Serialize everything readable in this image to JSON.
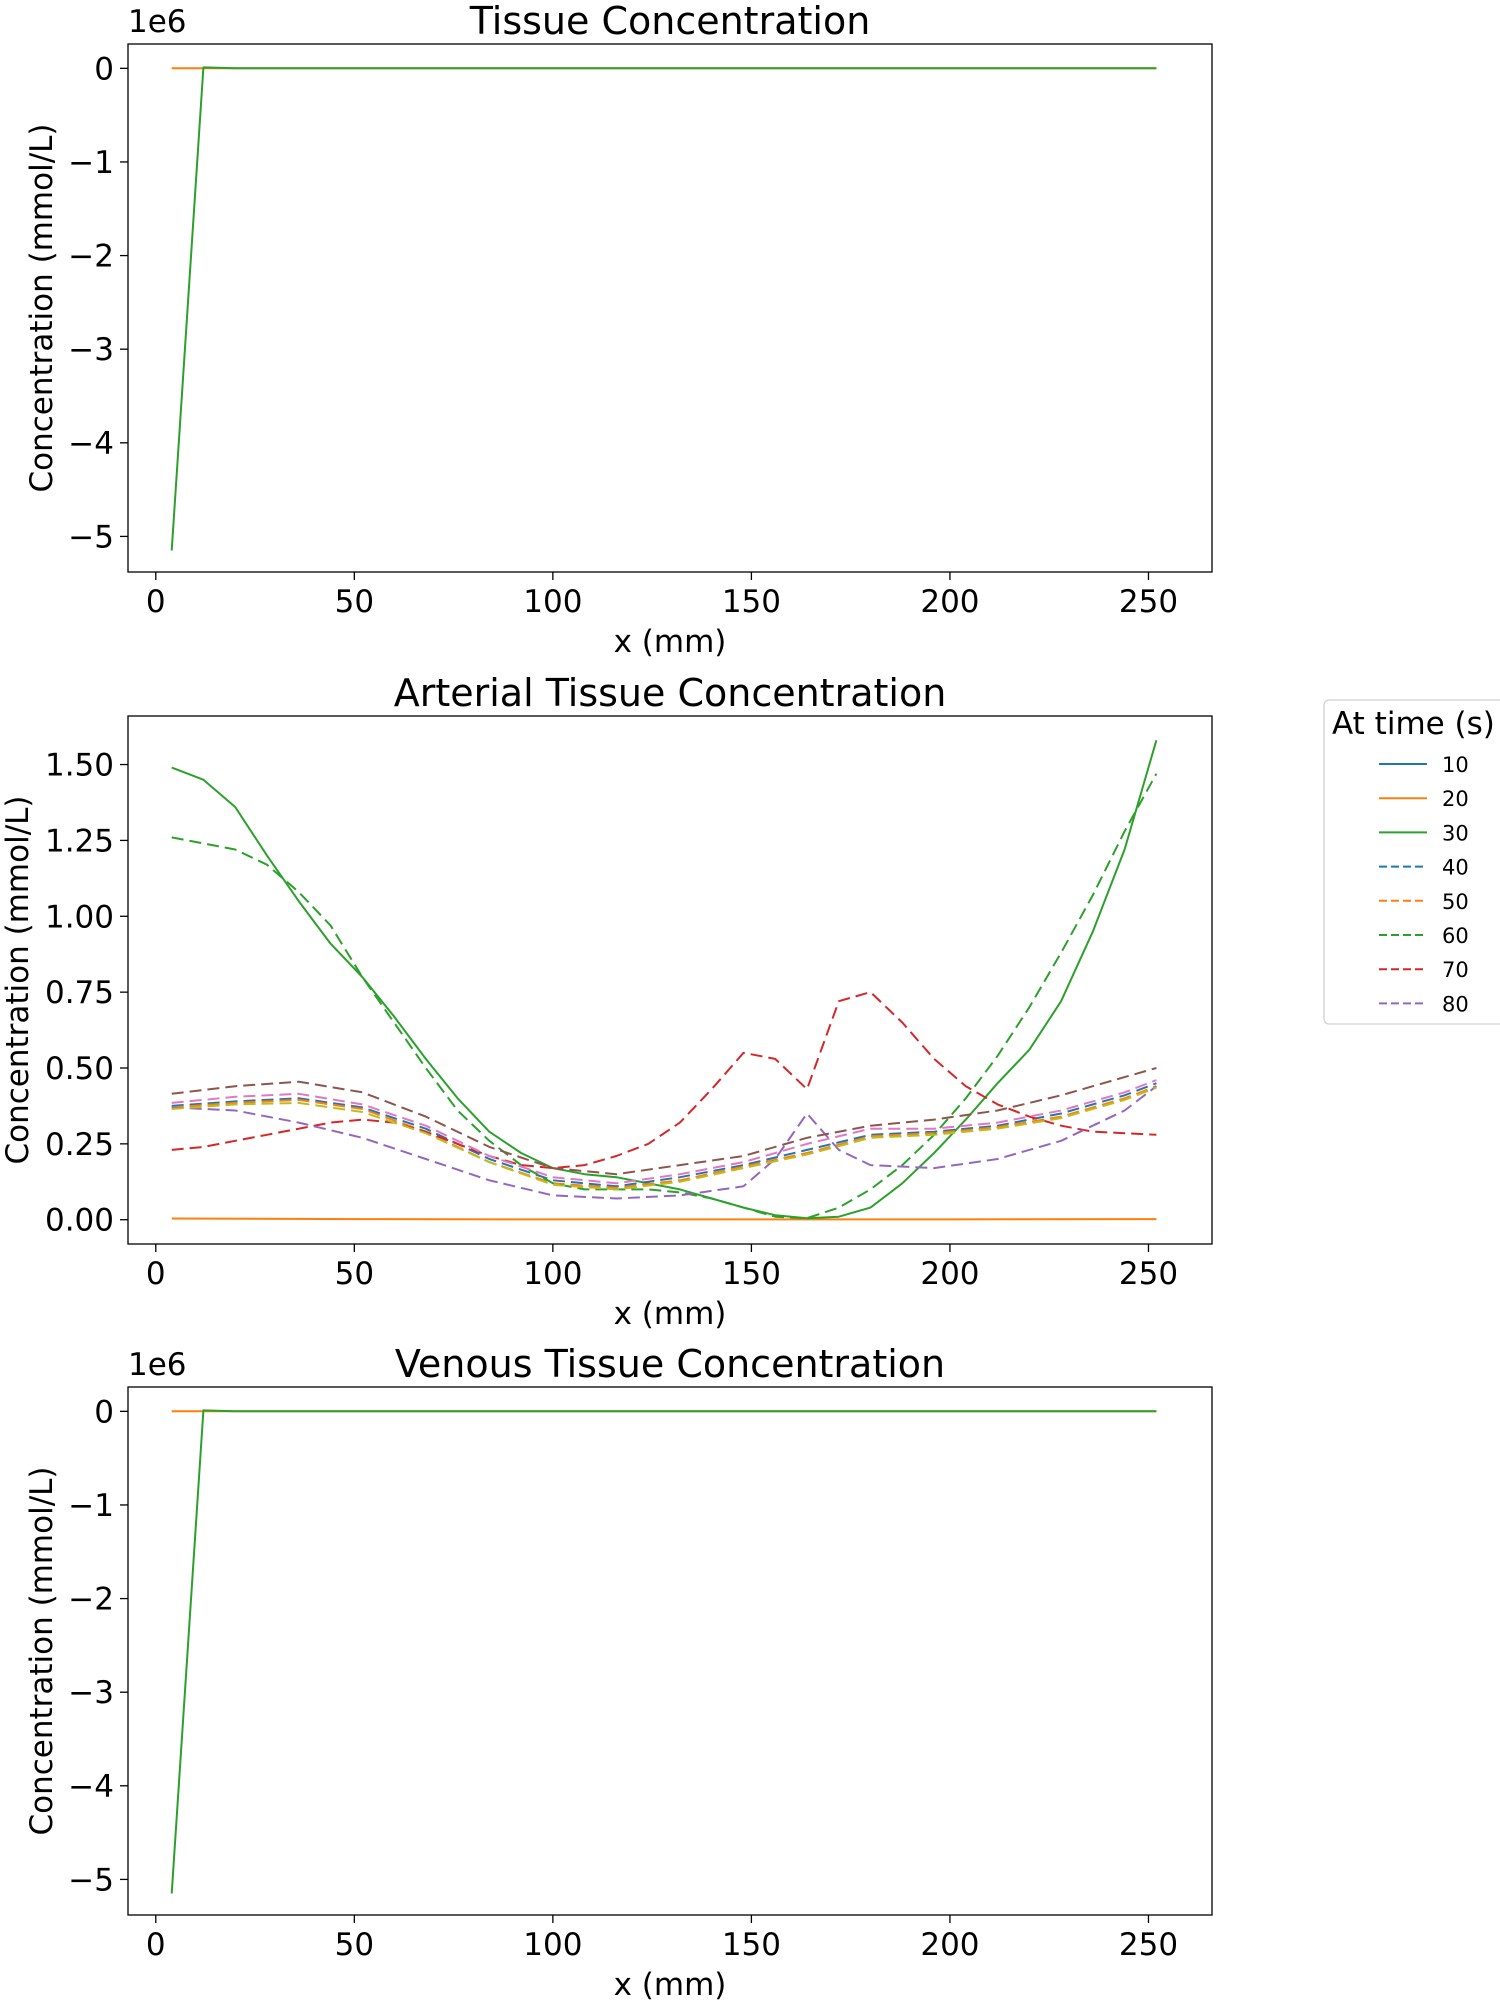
{
  "legend": {
    "title": "At time (s)",
    "placement": "right of middle panel",
    "entries": [
      {
        "label": "10",
        "color": "#1f77b4",
        "style": "solid"
      },
      {
        "label": "20",
        "color": "#ff7f0e",
        "style": "solid"
      },
      {
        "label": "30",
        "color": "#2ca02c",
        "style": "solid"
      },
      {
        "label": "40",
        "color": "#1f77b4",
        "style": "dashed"
      },
      {
        "label": "50",
        "color": "#ff7f0e",
        "style": "dashed"
      },
      {
        "label": "60",
        "color": "#2ca02c",
        "style": "dashed"
      },
      {
        "label": "70",
        "color": "#d62728",
        "style": "dashed"
      },
      {
        "label": "80",
        "color": "#9467bd",
        "style": "dashed"
      }
    ]
  },
  "chart_data": [
    {
      "type": "line",
      "title": "Tissue Concentration",
      "xlabel": "x (mm)",
      "ylabel": "Concentration (mmol/L)",
      "y_offset_label": "1e6",
      "xlim": [
        -7,
        266
      ],
      "ylim": [
        -5.38,
        0.26
      ],
      "xticks": [
        0,
        50,
        100,
        150,
        200,
        250
      ],
      "yticks": [
        0,
        -1,
        -2,
        -3,
        -4,
        -5
      ],
      "ytick_labels": [
        "0",
        "−1",
        "−2",
        "−3",
        "−4",
        "−5"
      ],
      "grid": false,
      "series": [
        {
          "name": "20",
          "color": "#ff7f0e",
          "style": "solid",
          "x": [
            4,
            252
          ],
          "y": [
            0,
            0
          ]
        },
        {
          "name": "30",
          "color": "#2ca02c",
          "style": "solid",
          "x": [
            4,
            12,
            20,
            252
          ],
          "y": [
            -5.15,
            0.01,
            0,
            0
          ]
        }
      ]
    },
    {
      "type": "line",
      "title": "Arterial Tissue Concentration",
      "xlabel": "x (mm)",
      "ylabel": "Concentration (mmol/L)",
      "y_offset_label": "",
      "xlim": [
        -7,
        266
      ],
      "ylim": [
        -0.08,
        1.66
      ],
      "xticks": [
        0,
        50,
        100,
        150,
        200,
        250
      ],
      "yticks": [
        0,
        0.25,
        0.5,
        0.75,
        1.0,
        1.25,
        1.5
      ],
      "ytick_labels": [
        "0.00",
        "0.25",
        "0.50",
        "0.75",
        "1.00",
        "1.25",
        "1.50"
      ],
      "grid": false,
      "series": [
        {
          "name": "20",
          "color": "#ff7f0e",
          "style": "solid",
          "x": [
            4,
            50,
            100,
            150,
            200,
            252
          ],
          "y": [
            0.004,
            0.002,
            0.001,
            0.001,
            0.001,
            0.002
          ]
        },
        {
          "name": "30",
          "color": "#2ca02c",
          "style": "solid",
          "x": [
            4,
            12,
            20,
            28,
            36,
            44,
            52,
            60,
            68,
            76,
            84,
            92,
            100,
            108,
            116,
            124,
            132,
            140,
            148,
            156,
            164,
            172,
            180,
            188,
            196,
            204,
            212,
            220,
            228,
            236,
            244,
            252
          ],
          "y": [
            1.49,
            1.45,
            1.36,
            1.2,
            1.05,
            0.91,
            0.8,
            0.67,
            0.53,
            0.4,
            0.29,
            0.22,
            0.17,
            0.15,
            0.14,
            0.12,
            0.1,
            0.07,
            0.04,
            0.015,
            0.005,
            0.01,
            0.04,
            0.12,
            0.22,
            0.33,
            0.45,
            0.56,
            0.72,
            0.95,
            1.22,
            1.58
          ]
        },
        {
          "name": "40",
          "color": "#1f77b4",
          "style": "dashed",
          "x": [
            4,
            20,
            36,
            52,
            68,
            84,
            100,
            116,
            132,
            148,
            164,
            180,
            196,
            212,
            228,
            244,
            252
          ],
          "y": [
            0.375,
            0.39,
            0.4,
            0.37,
            0.3,
            0.2,
            0.13,
            0.11,
            0.14,
            0.18,
            0.23,
            0.28,
            0.29,
            0.31,
            0.35,
            0.41,
            0.45
          ]
        },
        {
          "name": "50",
          "color": "#ff7f0e",
          "style": "dashed",
          "x": [
            4,
            20,
            36,
            52,
            68,
            84,
            100,
            116,
            132,
            148,
            164,
            180,
            196,
            212,
            228,
            244,
            252
          ],
          "y": [
            0.37,
            0.385,
            0.395,
            0.365,
            0.29,
            0.19,
            0.12,
            0.105,
            0.13,
            0.175,
            0.22,
            0.275,
            0.285,
            0.305,
            0.34,
            0.4,
            0.44
          ]
        },
        {
          "name": "60",
          "color": "#2ca02c",
          "style": "dashed",
          "x": [
            4,
            12,
            20,
            28,
            36,
            44,
            52,
            60,
            68,
            76,
            84,
            92,
            100,
            108,
            116,
            124,
            132,
            140,
            148,
            156,
            164,
            172,
            180,
            188,
            196,
            204,
            212,
            220,
            228,
            236,
            244,
            252
          ],
          "y": [
            1.26,
            1.24,
            1.22,
            1.17,
            1.08,
            0.97,
            0.8,
            0.65,
            0.5,
            0.36,
            0.26,
            0.18,
            0.12,
            0.1,
            0.1,
            0.1,
            0.09,
            0.07,
            0.04,
            0.01,
            0.005,
            0.04,
            0.1,
            0.18,
            0.28,
            0.4,
            0.54,
            0.7,
            0.88,
            1.07,
            1.28,
            1.47
          ]
        },
        {
          "name": "70",
          "color": "#d62728",
          "style": "dashed",
          "x": [
            4,
            12,
            20,
            28,
            36,
            44,
            52,
            60,
            68,
            76,
            84,
            92,
            100,
            108,
            116,
            124,
            132,
            140,
            148,
            156,
            164,
            172,
            180,
            188,
            196,
            204,
            212,
            220,
            228,
            236,
            244,
            252
          ],
          "y": [
            0.23,
            0.24,
            0.26,
            0.28,
            0.3,
            0.32,
            0.33,
            0.32,
            0.29,
            0.25,
            0.21,
            0.18,
            0.17,
            0.18,
            0.21,
            0.25,
            0.32,
            0.43,
            0.55,
            0.53,
            0.43,
            0.72,
            0.75,
            0.65,
            0.53,
            0.44,
            0.38,
            0.34,
            0.31,
            0.29,
            0.285,
            0.28
          ]
        },
        {
          "name": "80",
          "color": "#9467bd",
          "style": "dashed",
          "x": [
            4,
            20,
            36,
            52,
            68,
            84,
            100,
            116,
            132,
            148,
            156,
            164,
            172,
            180,
            196,
            212,
            228,
            244,
            252
          ],
          "y": [
            0.37,
            0.36,
            0.32,
            0.27,
            0.2,
            0.13,
            0.08,
            0.07,
            0.08,
            0.11,
            0.2,
            0.35,
            0.23,
            0.18,
            0.17,
            0.2,
            0.26,
            0.36,
            0.44
          ]
        },
        {
          "name": "",
          "color": "#8c564b",
          "style": "dashed",
          "x": [
            4,
            20,
            36,
            52,
            68,
            84,
            100,
            116,
            132,
            148,
            164,
            180,
            196,
            212,
            228,
            244,
            252
          ],
          "y": [
            0.415,
            0.44,
            0.455,
            0.42,
            0.34,
            0.24,
            0.17,
            0.15,
            0.18,
            0.21,
            0.27,
            0.31,
            0.33,
            0.36,
            0.41,
            0.47,
            0.5
          ]
        },
        {
          "name": "",
          "color": "#e377c2",
          "style": "dashed",
          "x": [
            4,
            20,
            36,
            52,
            68,
            84,
            100,
            116,
            132,
            148,
            164,
            180,
            196,
            212,
            228,
            244,
            252
          ],
          "y": [
            0.385,
            0.405,
            0.415,
            0.38,
            0.31,
            0.21,
            0.14,
            0.12,
            0.15,
            0.19,
            0.25,
            0.3,
            0.3,
            0.32,
            0.36,
            0.42,
            0.46
          ]
        },
        {
          "name": "",
          "color": "#bcbd22",
          "style": "dashed",
          "x": [
            4,
            20,
            36,
            52,
            68,
            84,
            100,
            116,
            132,
            148,
            164,
            180,
            196,
            212,
            228,
            244,
            252
          ],
          "y": [
            0.365,
            0.38,
            0.385,
            0.355,
            0.285,
            0.19,
            0.115,
            0.1,
            0.125,
            0.17,
            0.215,
            0.27,
            0.28,
            0.3,
            0.335,
            0.395,
            0.435
          ]
        }
      ]
    },
    {
      "type": "line",
      "title": "Venous Tissue Concentration",
      "xlabel": "x (mm)",
      "ylabel": "Concentration (mmol/L)",
      "y_offset_label": "1e6",
      "xlim": [
        -7,
        266
      ],
      "ylim": [
        -5.38,
        0.26
      ],
      "xticks": [
        0,
        50,
        100,
        150,
        200,
        250
      ],
      "yticks": [
        0,
        -1,
        -2,
        -3,
        -4,
        -5
      ],
      "ytick_labels": [
        "0",
        "−1",
        "−2",
        "−3",
        "−4",
        "−5"
      ],
      "grid": false,
      "series": [
        {
          "name": "20",
          "color": "#ff7f0e",
          "style": "solid",
          "x": [
            4,
            252
          ],
          "y": [
            0,
            0
          ]
        },
        {
          "name": "30",
          "color": "#2ca02c",
          "style": "solid",
          "x": [
            4,
            12,
            20,
            252
          ],
          "y": [
            -5.15,
            0.01,
            0,
            0
          ]
        }
      ]
    }
  ]
}
